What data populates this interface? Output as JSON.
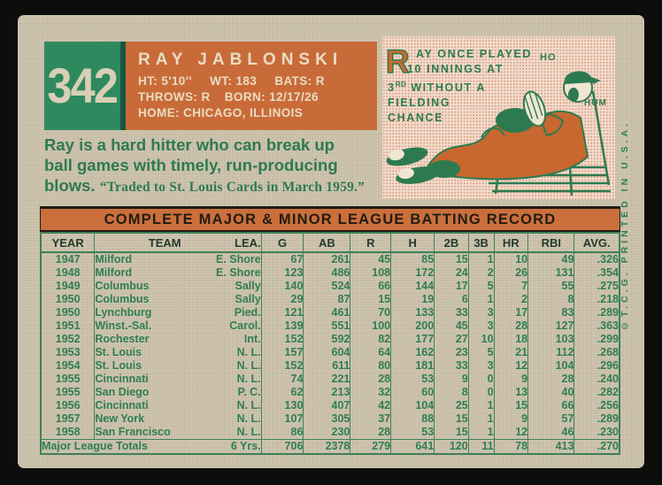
{
  "card_number": "342",
  "player": {
    "name": "RAY JABLONSKI",
    "vitals": {
      "ht_label": "HT:",
      "ht": "5'10''",
      "wt_label": "WT:",
      "wt": "183",
      "bats_label": "BATS:",
      "bats": "R",
      "throws_label": "THROWS:",
      "throws": "R",
      "born_label": "BORN:",
      "born": "12/17/26",
      "home_label": "HOME:",
      "home": "CHICAGO, ILLINOIS"
    }
  },
  "bio": {
    "line1": "Ray is a hard hitter who can break up",
    "line2": "ball games with timely, run-producing",
    "line3": "blows.",
    "quote": "“Traded to St. Louis Cards in March 1959.”"
  },
  "cartoon": {
    "initial": "R",
    "line1": "AY ONCE PLAYED",
    "line2": "10 INNINGS AT",
    "line3_num": "3",
    "line3_sup": "RD",
    "line3_rest": " WITHOUT A",
    "line4": "FIELDING",
    "line5": "CHANCE",
    "exclaim1": "HO",
    "exclaim2": "HUM"
  },
  "print_notice": "©T.C.G. PRINTED IN U.S.A.",
  "table": {
    "title": "COMPLETE MAJOR & MINOR LEAGUE BATTING RECORD",
    "headers": [
      "YEAR",
      "TEAM",
      "LEA.",
      "G",
      "AB",
      "R",
      "H",
      "2B",
      "3B",
      "HR",
      "RBI",
      "AVG."
    ],
    "rows": [
      [
        "1947",
        "Milford",
        "E. Shore",
        "67",
        "261",
        "45",
        "85",
        "15",
        "1",
        "10",
        "49",
        ".326"
      ],
      [
        "1948",
        "Milford",
        "E. Shore",
        "123",
        "486",
        "108",
        "172",
        "24",
        "2",
        "26",
        "131",
        ".354"
      ],
      [
        "1949",
        "Columbus",
        "Sally",
        "140",
        "524",
        "66",
        "144",
        "17",
        "5",
        "7",
        "55",
        ".275"
      ],
      [
        "1950",
        "Columbus",
        "Sally",
        "29",
        "87",
        "15",
        "19",
        "6",
        "1",
        "2",
        "8",
        ".218"
      ],
      [
        "1950",
        "Lynchburg",
        "Pied.",
        "121",
        "461",
        "70",
        "133",
        "33",
        "3",
        "17",
        "83",
        ".289"
      ],
      [
        "1951",
        "Winst.-Sal.",
        "Carol.",
        "139",
        "551",
        "100",
        "200",
        "45",
        "3",
        "28",
        "127",
        ".363"
      ],
      [
        "1952",
        "Rochester",
        "Int.",
        "152",
        "592",
        "82",
        "177",
        "27",
        "10",
        "18",
        "103",
        ".299"
      ],
      [
        "1953",
        "St. Louis",
        "N. L.",
        "157",
        "604",
        "64",
        "162",
        "23",
        "5",
        "21",
        "112",
        ".268"
      ],
      [
        "1954",
        "St. Louis",
        "N. L.",
        "152",
        "611",
        "80",
        "181",
        "33",
        "3",
        "12",
        "104",
        ".296"
      ],
      [
        "1955",
        "Cincinnati",
        "N. L.",
        "74",
        "221",
        "28",
        "53",
        "9",
        "0",
        "9",
        "28",
        ".240"
      ],
      [
        "1955",
        "San Diego",
        "P. C.",
        "62",
        "213",
        "32",
        "60",
        "8",
        "0",
        "13",
        "40",
        ".282"
      ],
      [
        "1956",
        "Cincinnati",
        "N. L.",
        "130",
        "407",
        "42",
        "104",
        "25",
        "1",
        "15",
        "66",
        ".256"
      ],
      [
        "1957",
        "New York",
        "N. L.",
        "107",
        "305",
        "37",
        "88",
        "15",
        "1",
        "9",
        "57",
        ".289"
      ],
      [
        "1958",
        "San Francisco",
        "N. L.",
        "86",
        "230",
        "28",
        "53",
        "15",
        "1",
        "12",
        "46",
        ".230"
      ]
    ],
    "totals": {
      "label": "Major League Totals",
      "years": "6 Yrs.",
      "stats": [
        "706",
        "2378",
        "279",
        "641",
        "120",
        "11",
        "78",
        "413",
        ".270"
      ]
    }
  },
  "colors": {
    "frame_black": "#0d0d0b",
    "card_cream": "#c9bfa8",
    "box_green": "#2e8a5e",
    "box_orange": "#c96b39",
    "text_cream": "#e8ddc2",
    "record_green": "#2f7e54",
    "title_bar_orange": "#ca6f3c",
    "cartoon_pink": "#f0dccd"
  }
}
